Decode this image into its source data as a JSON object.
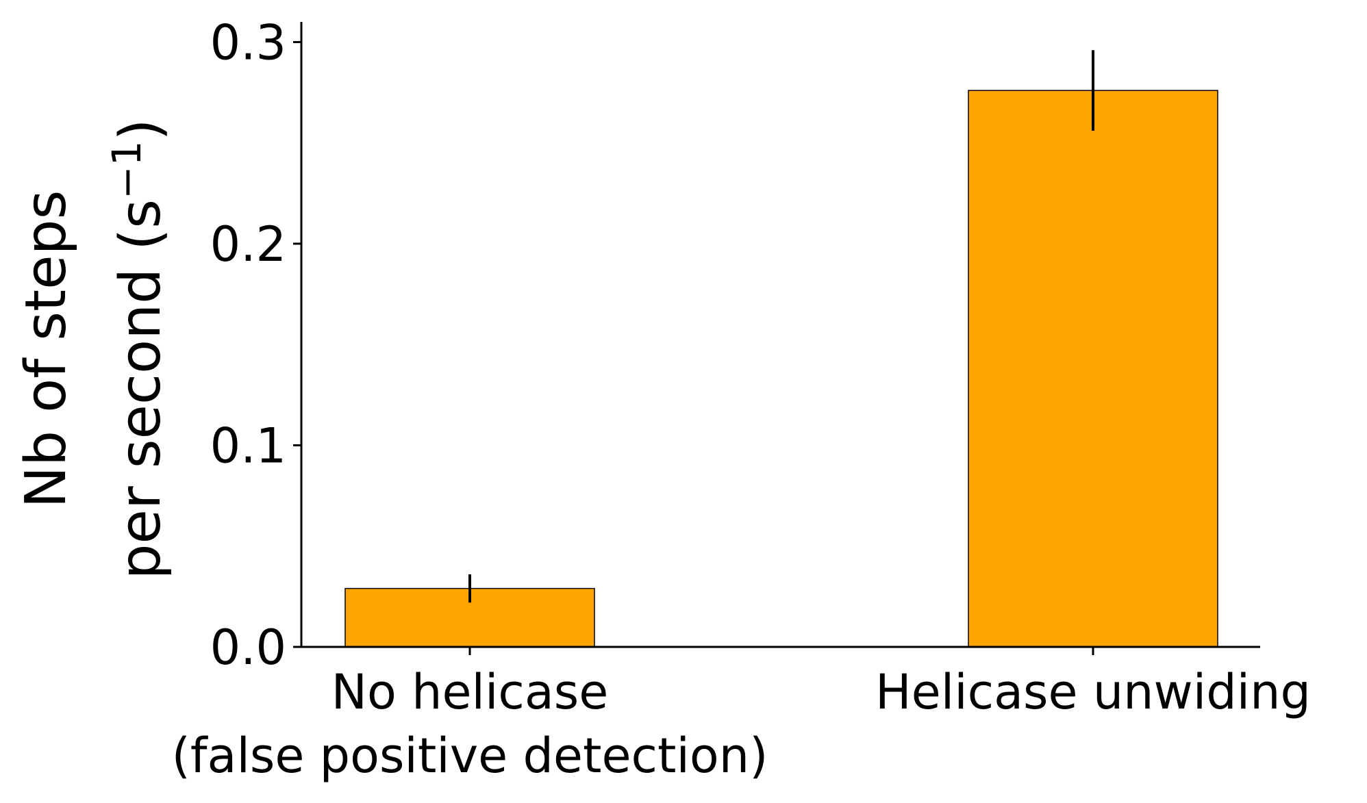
{
  "chart_data": {
    "type": "bar",
    "categories": [
      [
        "No helicase",
        "(false positive detection)"
      ],
      [
        "Helicase unwiding"
      ]
    ],
    "values": [
      0.029,
      0.276
    ],
    "errors": [
      0.007,
      0.02
    ],
    "ylabel_lines": [
      "Nb of steps",
      "per second (s",
      "−1",
      ")"
    ],
    "ylim": [
      0,
      0.31
    ],
    "yticks": [
      "0.0",
      "0.1",
      "0.2",
      "0.3"
    ],
    "ytick_values": [
      0.0,
      0.1,
      0.2,
      0.3
    ],
    "colors": {
      "bar": "#ffa500",
      "edge": "#000000",
      "error": "#000000"
    },
    "grid": false,
    "legend": false
  }
}
